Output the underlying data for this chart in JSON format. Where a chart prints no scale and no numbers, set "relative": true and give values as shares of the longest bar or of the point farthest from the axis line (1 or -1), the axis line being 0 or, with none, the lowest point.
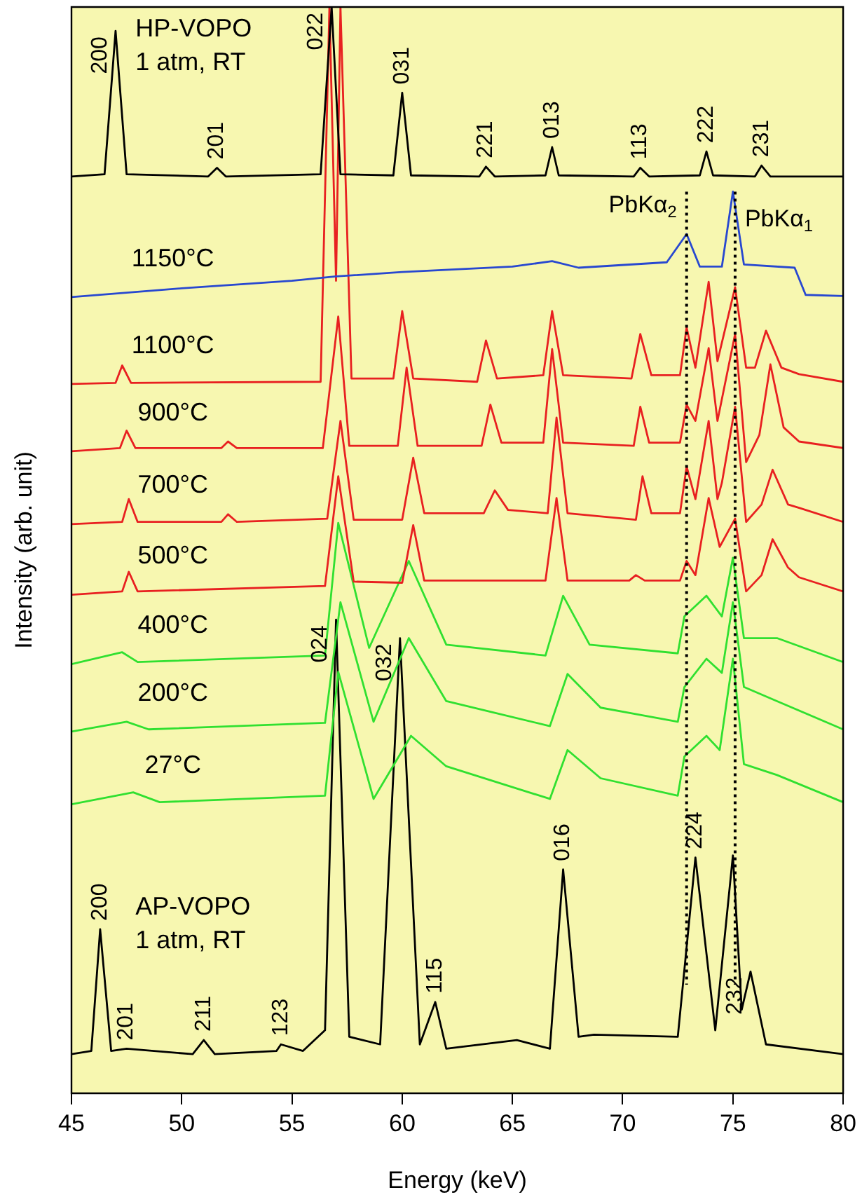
{
  "chart_data": {
    "type": "line",
    "xlabel": "Energy (keV)",
    "ylabel": "Intensity (arb. unit)",
    "relative": true,
    "xlim": [
      45,
      80
    ],
    "xticks": [
      45,
      50,
      55,
      60,
      65,
      70,
      75,
      80
    ],
    "marker": "none",
    "line_style": "solid",
    "series": [
      {
        "name": "HP-VOPO\n1 atm, RT",
        "color": "#000000",
        "x": [
          45,
          46.5,
          47.0,
          47.5,
          51.2,
          51.6,
          52,
          56.3,
          56.8,
          57.2,
          59.6,
          60.0,
          60.4,
          63.5,
          63.8,
          64.2,
          66.5,
          66.8,
          67.1,
          70.5,
          70.8,
          71.2,
          73.5,
          73.8,
          74.1,
          76.0,
          76.3,
          76.7,
          80
        ],
        "values": [
          0.844,
          0.846,
          0.978,
          0.846,
          0.844,
          0.852,
          0.844,
          0.846,
          1,
          0.846,
          0.845,
          0.921,
          0.845,
          0.844,
          0.853,
          0.844,
          0.845,
          0.871,
          0.845,
          0.844,
          0.852,
          0.844,
          0.845,
          0.867,
          0.845,
          0.844,
          0.854,
          0.844,
          0.844
        ]
      },
      {
        "name": "1150°C",
        "color": "#2848d0",
        "x": [
          45,
          50,
          55,
          57,
          60,
          65,
          66.8,
          68,
          72,
          72.9,
          73.5,
          74.5,
          75.0,
          75.5,
          77.8,
          78.3,
          80
        ],
        "values": [
          0.733,
          0.741,
          0.748,
          0.752,
          0.756,
          0.761,
          0.766,
          0.76,
          0.765,
          0.791,
          0.761,
          0.761,
          0.83,
          0.763,
          0.76,
          0.735,
          0.734
        ]
      },
      {
        "name": "1100°C",
        "color": "#e82020",
        "x": [
          45,
          47.0,
          47.3,
          47.7,
          56.3,
          56.7,
          57.0,
          57.2,
          57.7,
          59.6,
          60.0,
          60.5,
          63.4,
          63.8,
          64.3,
          66.4,
          66.8,
          67.3,
          70.4,
          70.8,
          71.3,
          72.6,
          72.9,
          73.3,
          73.9,
          74.3,
          75.1,
          75.6,
          76.0,
          76.5,
          77.2,
          78,
          80
        ],
        "values": [
          0.653,
          0.654,
          0.67,
          0.654,
          0.655,
          1,
          0.748,
          1,
          0.658,
          0.658,
          0.72,
          0.658,
          0.655,
          0.693,
          0.658,
          0.661,
          0.72,
          0.661,
          0.658,
          0.699,
          0.661,
          0.661,
          0.705,
          0.668,
          0.747,
          0.674,
          0.742,
          0.668,
          0.668,
          0.702,
          0.668,
          0.662,
          0.655
        ]
      },
      {
        "name": "900°C",
        "color": "#e82020",
        "x": [
          45,
          47.2,
          47.5,
          47.9,
          51.8,
          52.1,
          52.5,
          56.4,
          57.1,
          57.6,
          59.8,
          60.2,
          60.7,
          63.6,
          64.0,
          64.5,
          66.4,
          66.8,
          67.3,
          70.5,
          70.8,
          71.2,
          72.6,
          72.9,
          73.3,
          73.9,
          74.3,
          75.1,
          75.6,
          76.2,
          76.7,
          77.3,
          78,
          80
        ],
        "values": [
          0.591,
          0.594,
          0.61,
          0.594,
          0.594,
          0.6,
          0.594,
          0.594,
          0.715,
          0.596,
          0.596,
          0.668,
          0.596,
          0.596,
          0.634,
          0.599,
          0.599,
          0.685,
          0.599,
          0.596,
          0.632,
          0.599,
          0.599,
          0.634,
          0.619,
          0.686,
          0.619,
          0.699,
          0.581,
          0.606,
          0.671,
          0.613,
          0.6,
          0.594
        ]
      },
      {
        "name": "700°C",
        "color": "#e82020",
        "x": [
          45,
          47.3,
          47.6,
          48,
          51.8,
          52.1,
          52.5,
          56.6,
          57.2,
          57.8,
          60.0,
          60.5,
          61.0,
          63.7,
          64.2,
          64.8,
          66.6,
          67.0,
          67.5,
          70.6,
          70.9,
          71.3,
          72.6,
          72.9,
          73.3,
          73.9,
          74.3,
          74.5,
          75.1,
          75.6,
          76.3,
          76.8,
          77.5,
          78,
          80
        ],
        "values": [
          0.524,
          0.526,
          0.547,
          0.526,
          0.526,
          0.533,
          0.526,
          0.529,
          0.619,
          0.528,
          0.528,
          0.585,
          0.534,
          0.534,
          0.555,
          0.537,
          0.534,
          0.622,
          0.534,
          0.528,
          0.568,
          0.534,
          0.534,
          0.577,
          0.547,
          0.619,
          0.547,
          0.562,
          0.632,
          0.526,
          0.542,
          0.574,
          0.542,
          0.539,
          0.526
        ]
      },
      {
        "name": "500°C",
        "color": "#e82020",
        "x": [
          45,
          47.3,
          47.6,
          48,
          56.5,
          57.1,
          57.8,
          60.0,
          60.5,
          61.0,
          66.5,
          67.0,
          67.5,
          70.3,
          70.6,
          71.0,
          72.6,
          72.9,
          73.3,
          73.9,
          74.4,
          75.1,
          75.6,
          76.3,
          76.8,
          77.5,
          78,
          80
        ],
        "values": [
          0.459,
          0.462,
          0.48,
          0.462,
          0.467,
          0.568,
          0.471,
          0.47,
          0.523,
          0.472,
          0.472,
          0.548,
          0.472,
          0.472,
          0.477,
          0.472,
          0.472,
          0.49,
          0.477,
          0.548,
          0.503,
          0.529,
          0.462,
          0.477,
          0.51,
          0.484,
          0.475,
          0.462
        ]
      },
      {
        "name": "400°C",
        "color": "#30e030",
        "x": [
          45,
          47.3,
          48,
          56.5,
          57.1,
          58.5,
          60.3,
          62,
          66.5,
          67.3,
          68.5,
          72.5,
          72.8,
          73.8,
          74.5,
          75.0,
          75.5,
          77,
          80
        ],
        "values": [
          0.395,
          0.406,
          0.397,
          0.403,
          0.525,
          0.41,
          0.49,
          0.413,
          0.403,
          0.458,
          0.413,
          0.405,
          0.439,
          0.458,
          0.439,
          0.493,
          0.419,
          0.419,
          0.397
        ]
      },
      {
        "name": "200°C",
        "color": "#30e030",
        "x": [
          45,
          47.5,
          48.5,
          56.5,
          57.2,
          58.7,
          60.3,
          62,
          66.7,
          67.5,
          69,
          72.5,
          72.8,
          73.8,
          74.5,
          75.0,
          75.5,
          77,
          80
        ],
        "values": [
          0.333,
          0.342,
          0.335,
          0.341,
          0.452,
          0.342,
          0.419,
          0.361,
          0.338,
          0.386,
          0.355,
          0.342,
          0.374,
          0.4,
          0.387,
          0.452,
          0.374,
          0.361,
          0.335
        ]
      },
      {
        "name": "27°C",
        "color": "#30e030",
        "x": [
          45,
          47.8,
          49,
          56.5,
          57.1,
          58.7,
          60.4,
          62,
          66.7,
          67.5,
          69,
          72.5,
          72.8,
          73.8,
          74.4,
          75.0,
          75.5,
          77,
          80
        ],
        "values": [
          0.266,
          0.277,
          0.268,
          0.274,
          0.388,
          0.271,
          0.329,
          0.301,
          0.271,
          0.316,
          0.29,
          0.274,
          0.31,
          0.329,
          0.316,
          0.4,
          0.303,
          0.293,
          0.268
        ]
      },
      {
        "name": "AP-VOPO\n1 atm, RT",
        "color": "#000000",
        "x": [
          45,
          45.9,
          46.3,
          46.8,
          47.5,
          50.5,
          51.0,
          51.5,
          54.3,
          54.5,
          55.5,
          56.5,
          57.0,
          57.6,
          59.0,
          59.9,
          60.8,
          61.5,
          62.0,
          65.2,
          66.7,
          67.3,
          68.0,
          68.7,
          72.5,
          73.3,
          74.2,
          75.0,
          75.4,
          75.8,
          76.5,
          80
        ],
        "values": [
          0.036,
          0.039,
          0.151,
          0.039,
          0.041,
          0.036,
          0.049,
          0.036,
          0.039,
          0.045,
          0.039,
          0.058,
          0.436,
          0.052,
          0.045,
          0.419,
          0.045,
          0.084,
          0.041,
          0.049,
          0.041,
          0.206,
          0.052,
          0.054,
          0.052,
          0.217,
          0.058,
          0.219,
          0.077,
          0.112,
          0.045,
          0.036
        ]
      }
    ],
    "ref_lines": [
      {
        "axis": "x",
        "value": 72.9,
        "label": "PbKα$_{2}$",
        "color": "#000000",
        "line_style": "dotted"
      },
      {
        "axis": "x",
        "value": 75.1,
        "label": "PbKα$_{1}$",
        "color": "#000000",
        "line_style": "dotted"
      }
    ],
    "annotations": [
      {
        "text": "200",
        "x": 47.0,
        "y": 0.978
      },
      {
        "text": "201",
        "x": 51.6,
        "y": 0.852
      },
      {
        "text": "022",
        "x": 56.8,
        "y": 1
      },
      {
        "text": "031",
        "x": 60.0,
        "y": 0.921
      },
      {
        "text": "221",
        "x": 63.8,
        "y": 0.853
      },
      {
        "text": "013",
        "x": 66.8,
        "y": 0.871
      },
      {
        "text": "113",
        "x": 70.8,
        "y": 0.852
      },
      {
        "text": "222",
        "x": 73.8,
        "y": 0.867
      },
      {
        "text": "231",
        "x": 76.3,
        "y": 0.854
      },
      {
        "text": "200",
        "x": 46.3,
        "y": 0.151
      },
      {
        "text": "201",
        "x": 47.5,
        "y": 0.041
      },
      {
        "text": "211",
        "x": 51.0,
        "y": 0.049
      },
      {
        "text": "123",
        "x": 54.5,
        "y": 0.045
      },
      {
        "text": "024",
        "x": 57.0,
        "y": 0.436
      },
      {
        "text": "032",
        "x": 59.9,
        "y": 0.419
      },
      {
        "text": "115",
        "x": 61.5,
        "y": 0.084
      },
      {
        "text": "016",
        "x": 67.3,
        "y": 0.206
      },
      {
        "text": "224",
        "x": 73.3,
        "y": 0.217
      },
      {
        "text": "232",
        "x": 75.8,
        "y": 0.112
      }
    ]
  }
}
